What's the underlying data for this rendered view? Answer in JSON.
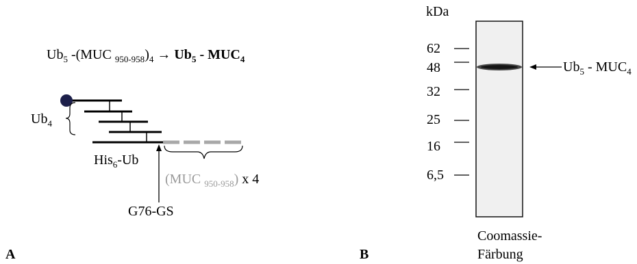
{
  "panel_a": {
    "label": "A",
    "equation": {
      "lhs_base": "Ub",
      "lhs_base_sub": "5",
      "lhs_middle": " -(MUC ",
      "lhs_range_sub": "950-958",
      "lhs_close": ")",
      "lhs_close_sub": "4",
      "arrow": "→",
      "rhs_a": "Ub",
      "rhs_a_sub": "5",
      "rhs_b": " - MUC",
      "rhs_b_sub": "4"
    },
    "ub4": {
      "text": "Ub",
      "sub": "4"
    },
    "his6ub": {
      "text": "His",
      "sub": "6",
      "suffix": "-Ub"
    },
    "muc_repeat": {
      "open": "(MUC ",
      "sub": "950-958",
      "close": ")",
      "suffix": " x 4"
    },
    "junction": "G76-GS",
    "colors": {
      "circle": "#1c1f4a",
      "muc_segment": "#a8a8a8",
      "muc_text": "#9a9a9a"
    }
  },
  "panel_b": {
    "label": "B",
    "unit": "kDa",
    "markers": [
      "62",
      "48",
      "32",
      "25",
      "16",
      "6,5"
    ],
    "band": {
      "text": "Ub",
      "sub": "5",
      "middle": " - MUC",
      "sub2": "4"
    },
    "stain_line1": "Coomassie-",
    "stain_line2": "Färbung"
  }
}
